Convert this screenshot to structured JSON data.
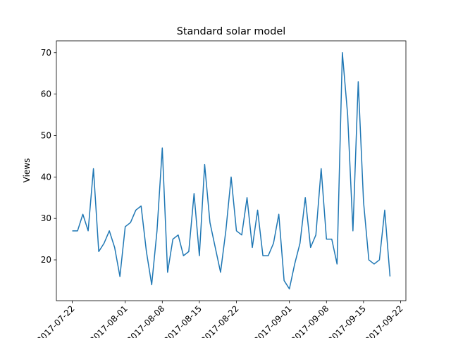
{
  "chart_data": {
    "type": "line",
    "title": "Standard solar model",
    "y_label": "Views",
    "x": [
      "2017-07-22",
      "2017-07-23",
      "2017-07-24",
      "2017-07-25",
      "2017-07-26",
      "2017-07-27",
      "2017-07-28",
      "2017-07-29",
      "2017-07-30",
      "2017-07-31",
      "2017-08-01",
      "2017-08-02",
      "2017-08-03",
      "2017-08-04",
      "2017-08-05",
      "2017-08-06",
      "2017-08-07",
      "2017-08-08",
      "2017-08-09",
      "2017-08-10",
      "2017-08-11",
      "2017-08-12",
      "2017-08-13",
      "2017-08-14",
      "2017-08-15",
      "2017-08-16",
      "2017-08-17",
      "2017-08-18",
      "2017-08-19",
      "2017-08-20",
      "2017-08-21",
      "2017-08-22",
      "2017-08-23",
      "2017-08-24",
      "2017-08-25",
      "2017-08-26",
      "2017-08-27",
      "2017-08-28",
      "2017-08-29",
      "2017-08-30",
      "2017-08-31",
      "2017-09-01",
      "2017-09-02",
      "2017-09-03",
      "2017-09-04",
      "2017-09-05",
      "2017-09-06",
      "2017-09-07",
      "2017-09-08",
      "2017-09-09",
      "2017-09-10",
      "2017-09-11",
      "2017-09-12",
      "2017-09-13",
      "2017-09-14",
      "2017-09-15",
      "2017-09-16",
      "2017-09-17",
      "2017-09-18",
      "2017-09-19",
      "2017-09-20"
    ],
    "series": [
      {
        "name": "Views",
        "color": "#1f77b4",
        "values": [
          27,
          27,
          31,
          27,
          42,
          22,
          24,
          27,
          23,
          16,
          28,
          29,
          32,
          33,
          22,
          14,
          27,
          47,
          17,
          25,
          26,
          21,
          22,
          36,
          21,
          43,
          29,
          23,
          17,
          27,
          40,
          27,
          26,
          35,
          23,
          32,
          21,
          21,
          24,
          31,
          15,
          13,
          19,
          24,
          35,
          23,
          26,
          42,
          25,
          25,
          19,
          70,
          55,
          27,
          63,
          34,
          20,
          19,
          20,
          32,
          16
        ]
      }
    ],
    "xlim": [
      "2017-07-19",
      "2017-09-23"
    ],
    "xticks": [
      "2017-07-22",
      "2017-08-01",
      "2017-08-08",
      "2017-08-15",
      "2017-08-22",
      "2017-09-01",
      "2017-09-08",
      "2017-09-15",
      "2017-09-22"
    ],
    "ylim": [
      10.15,
      72.85
    ],
    "yticks": [
      20,
      30,
      40,
      50,
      60,
      70
    ],
    "grid": false
  }
}
